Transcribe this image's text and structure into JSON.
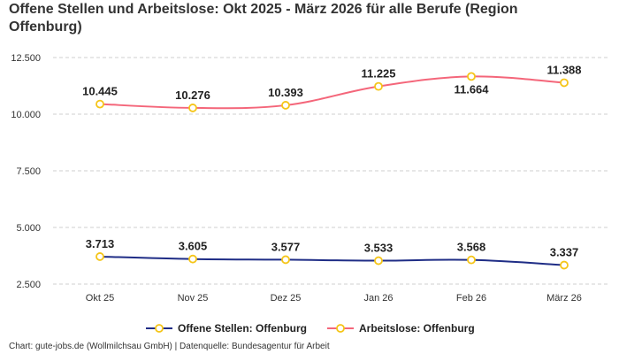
{
  "chart_data": {
    "type": "line",
    "title": "Offene Stellen und Arbeitslose: Okt 2025 - März 2026 für alle Berufe (Region Offenburg)",
    "categories": [
      "Okt 25",
      "Nov 25",
      "Dez 25",
      "Jan 26",
      "Feb 26",
      "März 26"
    ],
    "yticks": [
      "2.500",
      "5.000",
      "7.500",
      "10.000",
      "12.500"
    ],
    "ylim": [
      2000,
      12500
    ],
    "grid": true,
    "legend_position": "bottom",
    "series": [
      {
        "name": "Offene Stellen: Offenburg",
        "values": [
          3713,
          3605,
          3577,
          3533,
          3568,
          3337
        ],
        "labels": [
          "3.713",
          "3.605",
          "3.577",
          "3.533",
          "3.568",
          "3.337"
        ],
        "color": "#1f2d86"
      },
      {
        "name": "Arbeitslose: Offenburg",
        "values": [
          10445,
          10276,
          10393,
          11225,
          11664,
          11388
        ],
        "labels": [
          "10.445",
          "10.276",
          "10.393",
          "11.225",
          "11.664",
          "11.388"
        ],
        "color": "#f4667a"
      }
    ],
    "marker_color": "#f5c518",
    "source": "Chart: gute-jobs.de (Wollmilchsau GmbH) | Datenquelle: Bundesagentur für Arbeit"
  }
}
